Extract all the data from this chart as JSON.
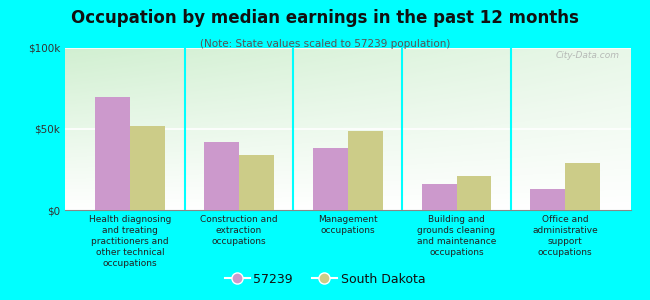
{
  "title": "Occupation by median earnings in the past 12 months",
  "subtitle": "(Note: State values scaled to 57239 population)",
  "categories": [
    "Health diagnosing\nand treating\npractitioners and\nother technical\noccupations",
    "Construction and\nextraction\noccupations",
    "Management\noccupations",
    "Building and\ngrounds cleaning\nand maintenance\noccupations",
    "Office and\nadministrative\nsupport\noccupations"
  ],
  "values_57239": [
    70000,
    42000,
    38000,
    16000,
    13000
  ],
  "values_sd": [
    52000,
    34000,
    49000,
    21000,
    29000
  ],
  "color_57239": "#cc99cc",
  "color_sd": "#cccc88",
  "background_color": "#00ffff",
  "ylim": [
    0,
    100000
  ],
  "yticks": [
    0,
    50000,
    100000
  ],
  "ytick_labels": [
    "$0",
    "$50k",
    "$100k"
  ],
  "legend_labels": [
    "57239",
    "South Dakota"
  ],
  "watermark": "City-Data.com",
  "bar_width": 0.32
}
